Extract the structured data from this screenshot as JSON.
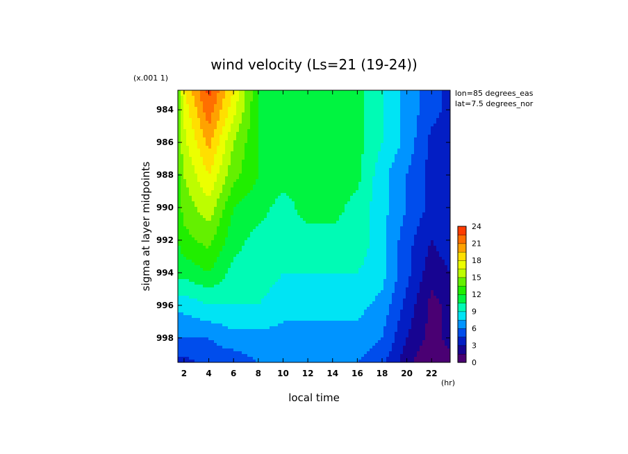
{
  "chart_data": {
    "type": "heatmap",
    "title": "wind velocity (Ls=21 (19-24))",
    "xlabel": "local time",
    "ylabel": "sigma at layer midpoints",
    "x_unit": "(hr)",
    "y_scale_note": "(x.001 1)",
    "annotations": [
      "lon=85 degrees_eas",
      "lat=7.5 degrees_nor"
    ],
    "xlim": [
      1.5,
      23.5
    ],
    "ylim": [
      999.5,
      982.8
    ],
    "xticks": [
      2,
      4,
      6,
      8,
      10,
      12,
      14,
      16,
      18,
      20,
      22
    ],
    "yticks": [
      984,
      986,
      988,
      990,
      992,
      994,
      996,
      998
    ],
    "x": [
      1.5,
      2,
      4,
      6,
      8,
      10,
      12,
      14,
      16,
      18,
      20,
      22,
      23.5
    ],
    "y": [
      982.8,
      984,
      986,
      988,
      990,
      992,
      994,
      996,
      998,
      999.5
    ],
    "z": [
      [
        14,
        18,
        23,
        18,
        12,
        11,
        11,
        11,
        11,
        9,
        7,
        5,
        4
      ],
      [
        14,
        17,
        22,
        17,
        12,
        11,
        11,
        11,
        11,
        9,
        7,
        5,
        4
      ],
      [
        14,
        16,
        20,
        15,
        12,
        11,
        11,
        11,
        11,
        9,
        7,
        4,
        4
      ],
      [
        13,
        15,
        18,
        14,
        12,
        11,
        11,
        11,
        11,
        8,
        6,
        4,
        4
      ],
      [
        13,
        14,
        16,
        12,
        11,
        10,
        11,
        11,
        10,
        8,
        6,
        4,
        4
      ],
      [
        12,
        13,
        14,
        11,
        10,
        10,
        10,
        10,
        10,
        8,
        5,
        3,
        4
      ],
      [
        11,
        11,
        12,
        10,
        10,
        9,
        9,
        9,
        9,
        8,
        5,
        2,
        3
      ],
      [
        8,
        8,
        9,
        9,
        9,
        8,
        8,
        8,
        8,
        7,
        4,
        1,
        2
      ],
      [
        6,
        6,
        6,
        7,
        7,
        7,
        7,
        7,
        7,
        6,
        3,
        1,
        2
      ],
      [
        4,
        4,
        5,
        5,
        6,
        6,
        6,
        6,
        6,
        5,
        2,
        0,
        1
      ]
    ],
    "colorbar": {
      "min": 0,
      "max": 24,
      "step": 1.5,
      "ticks": [
        0,
        3,
        6,
        9,
        12,
        15,
        18,
        21,
        24
      ]
    },
    "colormap_stops": [
      [
        0,
        "#660066"
      ],
      [
        2,
        "#1a0088"
      ],
      [
        4,
        "#0022cc"
      ],
      [
        6,
        "#0066ff"
      ],
      [
        8,
        "#00e0ff"
      ],
      [
        10,
        "#00ffaa"
      ],
      [
        12,
        "#00ee00"
      ],
      [
        14,
        "#55ee00"
      ],
      [
        16,
        "#ccff00"
      ],
      [
        18,
        "#ffff00"
      ],
      [
        20,
        "#ffaa00"
      ],
      [
        22,
        "#ff6600"
      ],
      [
        24,
        "#ff2200"
      ]
    ],
    "grid": false
  }
}
